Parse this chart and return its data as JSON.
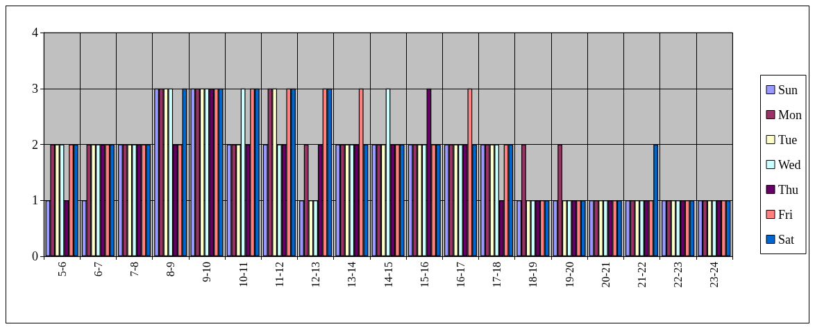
{
  "chart_data": {
    "type": "bar",
    "categories": [
      "5-6",
      "6-7",
      "7-8",
      "8-9",
      "9-10",
      "10-11",
      "11-12",
      "12-13",
      "13-14",
      "14-15",
      "15-16",
      "16-17",
      "17-18",
      "18-19",
      "19-20",
      "20-21",
      "21-22",
      "22-23",
      "23-24"
    ],
    "series": [
      {
        "name": "Sun",
        "color": "#9999ff",
        "values": [
          1,
          1,
          2,
          3,
          3,
          2,
          2,
          1,
          2,
          2,
          2,
          2,
          2,
          1,
          1,
          1,
          1,
          1,
          1
        ]
      },
      {
        "name": "Mon",
        "color": "#993366",
        "values": [
          2,
          2,
          2,
          3,
          3,
          2,
          3,
          2,
          2,
          2,
          2,
          2,
          2,
          2,
          2,
          1,
          1,
          1,
          1
        ]
      },
      {
        "name": "Tue",
        "color": "#ffffcc",
        "values": [
          2,
          2,
          2,
          3,
          3,
          2,
          3,
          1,
          2,
          2,
          2,
          2,
          2,
          1,
          1,
          1,
          1,
          1,
          1
        ]
      },
      {
        "name": "Wed",
        "color": "#ccffff",
        "values": [
          2,
          2,
          2,
          3,
          3,
          3,
          2,
          1,
          2,
          3,
          2,
          2,
          2,
          1,
          1,
          1,
          1,
          1,
          1
        ]
      },
      {
        "name": "Thu",
        "color": "#660066",
        "values": [
          1,
          2,
          2,
          2,
          3,
          2,
          2,
          2,
          2,
          2,
          3,
          2,
          1,
          1,
          1,
          1,
          1,
          1,
          1
        ]
      },
      {
        "name": "Fri",
        "color": "#ff8080",
        "values": [
          2,
          2,
          2,
          2,
          3,
          3,
          3,
          3,
          3,
          2,
          2,
          3,
          2,
          1,
          1,
          1,
          1,
          1,
          1
        ]
      },
      {
        "name": "Sat",
        "color": "#0066cc",
        "values": [
          2,
          2,
          2,
          3,
          3,
          3,
          3,
          3,
          2,
          2,
          2,
          2,
          2,
          1,
          1,
          1,
          2,
          1,
          1
        ]
      }
    ],
    "ylim": [
      0,
      4
    ],
    "yticks": [
      0,
      1,
      2,
      3,
      4
    ],
    "grid": true,
    "legend": "right"
  }
}
